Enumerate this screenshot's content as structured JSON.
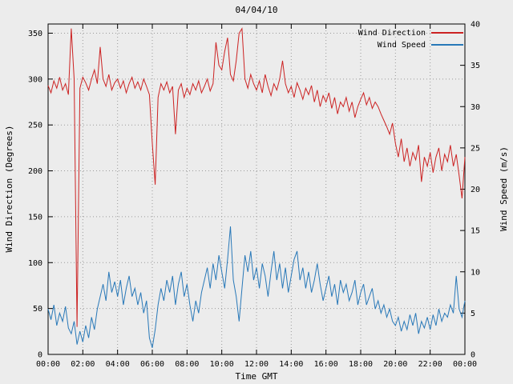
{
  "chart_data": {
    "type": "line",
    "title": "04/04/10",
    "xlabel": "Time GMT",
    "ylabel_left": "Wind Direction (Degrees)",
    "ylabel_right": "Wind Speed (m/s)",
    "grid": "dotted",
    "legend_position": "top-right-inside",
    "x_range_hours": [
      0,
      24
    ],
    "x_tick_hours": [
      0,
      2,
      4,
      6,
      8,
      10,
      12,
      14,
      16,
      18,
      20,
      22,
      24
    ],
    "x_tick_labels": [
      "00:00",
      "02:00",
      "04:00",
      "06:00",
      "08:00",
      "10:00",
      "12:00",
      "14:00",
      "16:00",
      "18:00",
      "20:00",
      "22:00",
      "00:00"
    ],
    "y_left": {
      "range": [
        0,
        360
      ],
      "ticks": [
        0,
        50,
        100,
        150,
        200,
        250,
        300,
        350
      ]
    },
    "y_right": {
      "range": [
        0,
        40
      ],
      "ticks": [
        0,
        5,
        10,
        15,
        20,
        25,
        30,
        35,
        40
      ]
    },
    "sample_interval_minutes": 10,
    "series": [
      {
        "name": "Wind Direction",
        "axis": "left",
        "unit": "degrees",
        "color": "#cc2222",
        "values": [
          293,
          285,
          298,
          290,
          302,
          288,
          295,
          283,
          355,
          300,
          30,
          290,
          302,
          296,
          288,
          300,
          310,
          295,
          335,
          300,
          292,
          305,
          288,
          296,
          300,
          290,
          298,
          285,
          295,
          302,
          290,
          297,
          288,
          300,
          292,
          283,
          230,
          185,
          280,
          295,
          288,
          297,
          285,
          292,
          240,
          288,
          295,
          280,
          290,
          283,
          295,
          288,
          298,
          285,
          292,
          300,
          287,
          295,
          340,
          315,
          310,
          330,
          345,
          305,
          298,
          320,
          350,
          355,
          300,
          290,
          305,
          295,
          288,
          298,
          285,
          305,
          292,
          282,
          295,
          288,
          300,
          320,
          295,
          285,
          292,
          280,
          296,
          288,
          278,
          290,
          283,
          293,
          275,
          288,
          270,
          282,
          275,
          285,
          268,
          280,
          262,
          275,
          270,
          280,
          265,
          275,
          258,
          270,
          278,
          285,
          272,
          280,
          268,
          275,
          270,
          262,
          255,
          248,
          240,
          252,
          230,
          215,
          235,
          210,
          225,
          205,
          220,
          212,
          228,
          188,
          215,
          205,
          220,
          198,
          215,
          225,
          200,
          218,
          210,
          228,
          205,
          218,
          195,
          170,
          215
        ]
      },
      {
        "name": "Wind Speed",
        "axis": "right",
        "unit": "m/s",
        "color": "#2878b8",
        "values": [
          5.5,
          4.2,
          6,
          3.5,
          5,
          4,
          5.8,
          3.2,
          2.5,
          4,
          1.2,
          2.8,
          1.5,
          3.5,
          2,
          4.5,
          3,
          5.5,
          7,
          8.5,
          6.5,
          10,
          7.5,
          8.8,
          7,
          9,
          6,
          8,
          9.5,
          7,
          8,
          6,
          7.5,
          5,
          6.5,
          2,
          0.8,
          3,
          6,
          8,
          6.5,
          9,
          7.5,
          9.5,
          6,
          8.5,
          10,
          7,
          8.5,
          6,
          4,
          6.5,
          5,
          7.5,
          9,
          10.5,
          8,
          11,
          9,
          12,
          10,
          8,
          11.5,
          15.5,
          9,
          7,
          4,
          8,
          12,
          10,
          12.5,
          9,
          10.5,
          8,
          11,
          9.5,
          7,
          10,
          12.5,
          9,
          11,
          8,
          10.5,
          7.5,
          9.5,
          11.5,
          12.5,
          9,
          10.5,
          8,
          10,
          7.5,
          9,
          11,
          8.5,
          6.5,
          8,
          9.5,
          7,
          8.5,
          6,
          9,
          7.5,
          8.5,
          6.5,
          7.5,
          9,
          6,
          7.5,
          8.5,
          6,
          7,
          8,
          5.5,
          6.5,
          5,
          6,
          4.5,
          5.5,
          4,
          3.5,
          4.5,
          2.8,
          4,
          3,
          4.8,
          3.5,
          5,
          2.5,
          4,
          3.2,
          4.5,
          3,
          4.8,
          3.5,
          5.5,
          4,
          5,
          4.5,
          6,
          5,
          9.5,
          5.5,
          4.5,
          6.5
        ]
      }
    ]
  }
}
